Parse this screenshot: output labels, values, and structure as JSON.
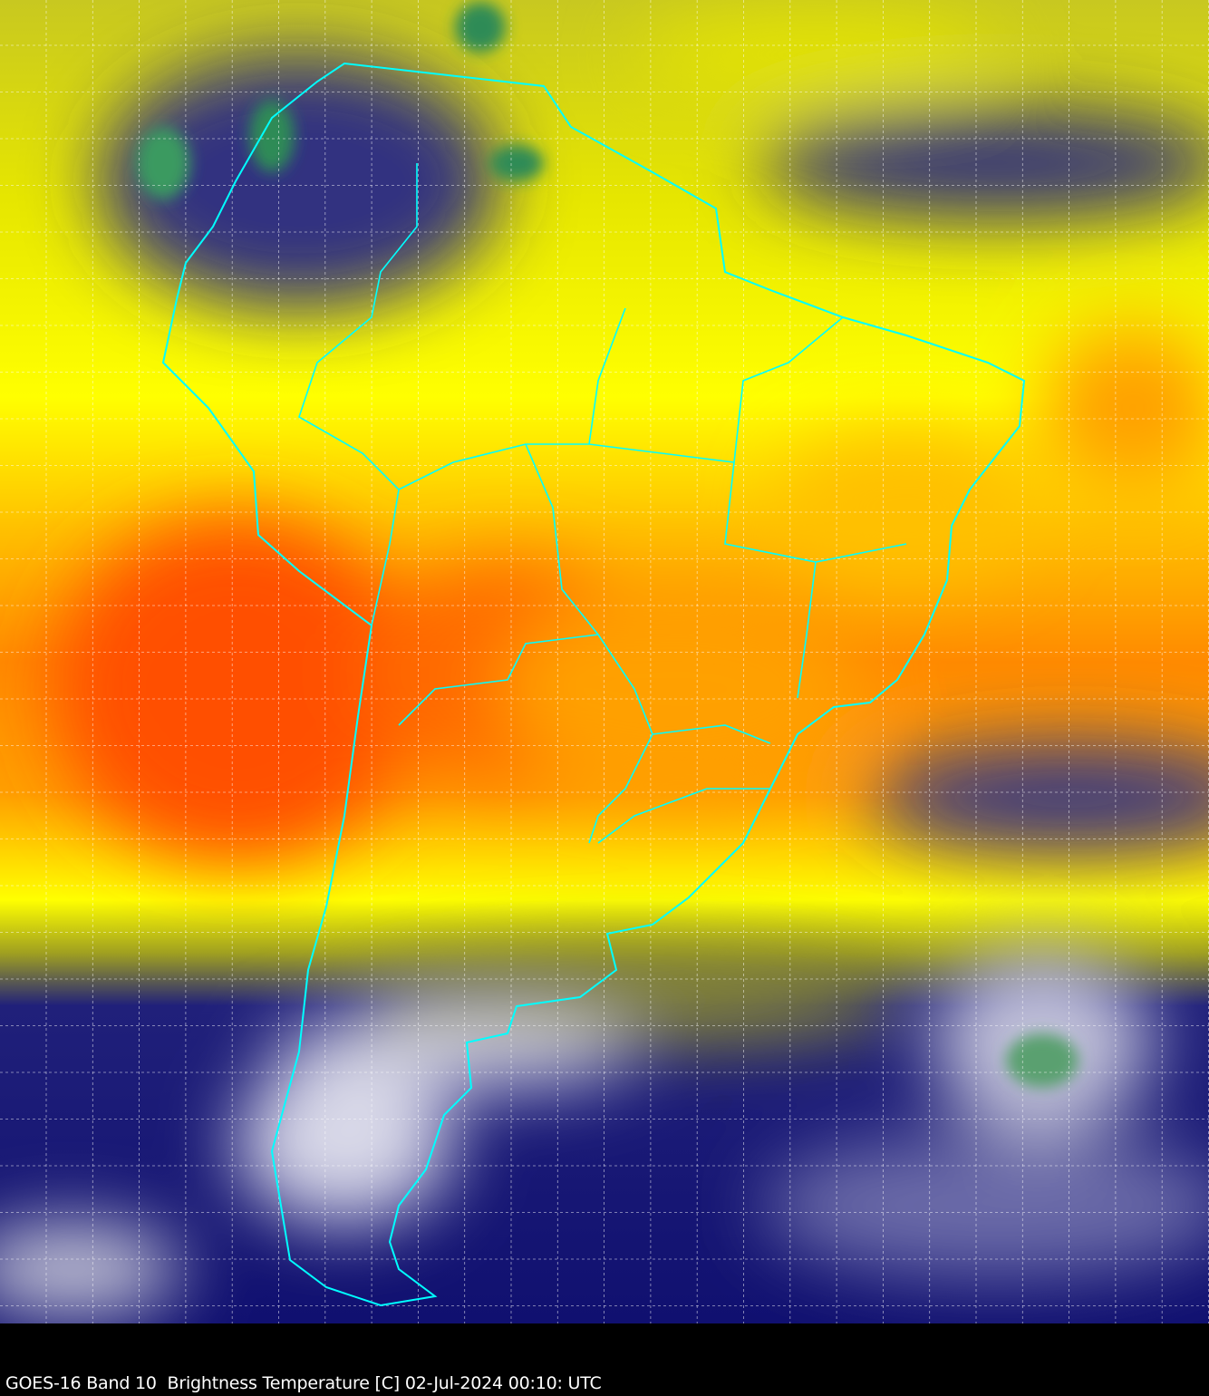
{
  "caption": "GOES-16 Band 10  Brightness Temperature [C] 02-Jul-2024 00:10: UTC",
  "colors": {
    "warm": "#ff4a00",
    "orange": "#ffa500",
    "yellow": "#ffff00",
    "olive": "#8c8c20",
    "cold_blue": "#10107a",
    "cloud_white": "#e8e8f0",
    "deep_cold_green": "#2e8b57",
    "coastline": "#00ffff",
    "graticule": "#ffffff",
    "background": "#000000"
  }
}
